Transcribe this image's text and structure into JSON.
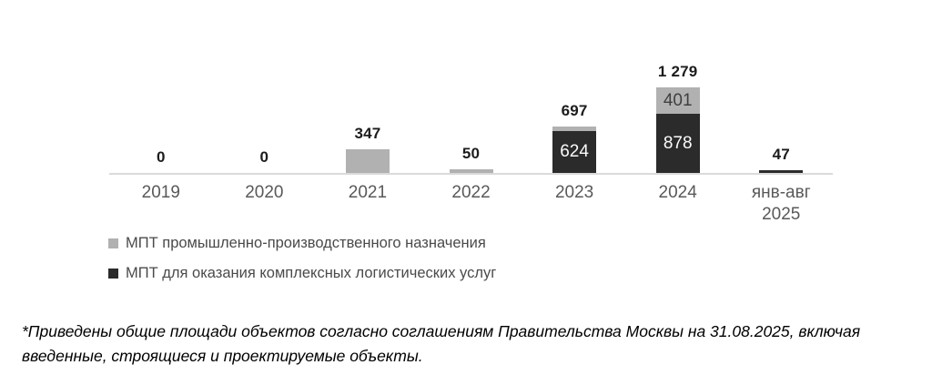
{
  "chart_data": {
    "type": "bar",
    "stacked": true,
    "categories": [
      "2019",
      "2020",
      "2021",
      "2022",
      "2023",
      "2024",
      "янв-авг\n2025"
    ],
    "series": [
      {
        "name": "МПТ промышленно-производственного назначения",
        "color": "#b1b1b1",
        "label_color": "#3f3f3f",
        "values": [
          0,
          0,
          347,
          50,
          73,
          401,
          0
        ],
        "bar_labels": [
          "",
          "",
          "",
          "",
          "",
          "401",
          ""
        ]
      },
      {
        "name": "МПТ для оказания комплексных логистических услуг",
        "color": "#2b2b2b",
        "label_color": "#fbfbfb",
        "values": [
          0,
          0,
          0,
          0,
          624,
          878,
          47
        ],
        "bar_labels": [
          "",
          "",
          "",
          "",
          "624",
          "878",
          ""
        ]
      }
    ],
    "totals": [
      0,
      0,
      347,
      50,
      697,
      1279,
      47
    ],
    "total_labels": [
      "0",
      "0",
      "347",
      "50",
      "697",
      "1 279",
      "47"
    ],
    "title": "",
    "xlabel": "",
    "ylabel": "",
    "ylim": [
      0,
      1400
    ],
    "grid": false,
    "y_axis_visible": false,
    "legend_position": "bottom-left",
    "axis_color": "#dadada"
  },
  "footnote": {
    "text": "*Приведены общие площади объектов согласно соглашениям Правительства Москвы на 31.08.2025, включая введенные, строящиеся и проектируемые объекты."
  }
}
